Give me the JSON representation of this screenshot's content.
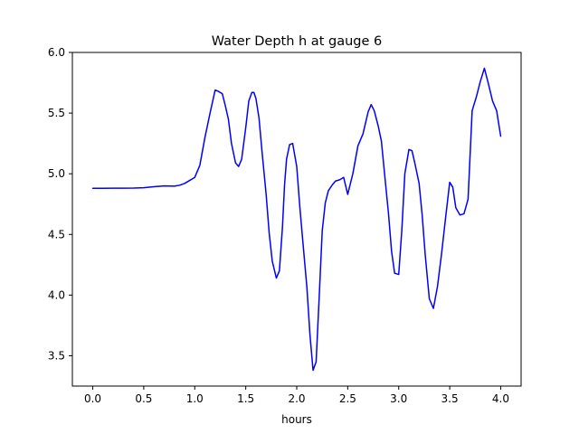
{
  "chart_data": {
    "type": "line",
    "title": "Water Depth h at gauge 6",
    "xlabel": "hours",
    "ylabel": "",
    "xlim": [
      -0.2,
      4.2
    ],
    "ylim": [
      3.25,
      6.0
    ],
    "xticks": [
      0.0,
      0.5,
      1.0,
      1.5,
      2.0,
      2.5,
      3.0,
      3.5,
      4.0
    ],
    "xtick_labels": [
      "0.0",
      "0.5",
      "1.0",
      "1.5",
      "2.0",
      "2.5",
      "3.0",
      "3.5",
      "4.0"
    ],
    "yticks": [
      3.5,
      4.0,
      4.5,
      5.0,
      5.5,
      6.0
    ],
    "ytick_labels": [
      "3.5",
      "4.0",
      "4.5",
      "5.0",
      "5.5",
      "6.0"
    ],
    "grid": false,
    "series": [
      {
        "name": "",
        "color": "#0000ff",
        "x": [
          0.0,
          0.1,
          0.2,
          0.3,
          0.4,
          0.5,
          0.6,
          0.7,
          0.8,
          0.85,
          0.9,
          0.95,
          1.0,
          1.05,
          1.1,
          1.15,
          1.2,
          1.23,
          1.27,
          1.3,
          1.33,
          1.36,
          1.4,
          1.43,
          1.46,
          1.5,
          1.53,
          1.56,
          1.58,
          1.6,
          1.63,
          1.66,
          1.7,
          1.73,
          1.76,
          1.8,
          1.83,
          1.86,
          1.88,
          1.9,
          1.93,
          1.96,
          2.0,
          2.03,
          2.06,
          2.1,
          2.13,
          2.16,
          2.19,
          2.22,
          2.25,
          2.28,
          2.31,
          2.35,
          2.38,
          2.42,
          2.46,
          2.5,
          2.55,
          2.6,
          2.65,
          2.7,
          2.73,
          2.76,
          2.8,
          2.83,
          2.86,
          2.9,
          2.93,
          2.96,
          3.0,
          3.03,
          3.06,
          3.1,
          3.13,
          3.16,
          3.2,
          3.23,
          3.26,
          3.3,
          3.34,
          3.38,
          3.42,
          3.46,
          3.5,
          3.53,
          3.56,
          3.6,
          3.64,
          3.68,
          3.72,
          3.76,
          3.8,
          3.84,
          3.88,
          3.92,
          3.96,
          4.0
        ],
        "values": [
          4.88,
          4.88,
          4.881,
          4.881,
          4.882,
          4.885,
          4.893,
          4.9,
          4.898,
          4.905,
          4.92,
          4.945,
          4.97,
          5.07,
          5.3,
          5.5,
          5.69,
          5.68,
          5.66,
          5.56,
          5.45,
          5.25,
          5.09,
          5.06,
          5.12,
          5.38,
          5.6,
          5.67,
          5.67,
          5.62,
          5.46,
          5.18,
          4.83,
          4.51,
          4.28,
          4.14,
          4.2,
          4.56,
          4.9,
          5.12,
          5.24,
          5.25,
          5.06,
          4.73,
          4.44,
          4.06,
          3.67,
          3.38,
          3.45,
          3.98,
          4.53,
          4.76,
          4.86,
          4.91,
          4.94,
          4.95,
          4.97,
          4.83,
          5.0,
          5.23,
          5.33,
          5.51,
          5.57,
          5.52,
          5.39,
          5.27,
          5.01,
          4.67,
          4.36,
          4.18,
          4.17,
          4.53,
          5.0,
          5.2,
          5.19,
          5.08,
          4.92,
          4.66,
          4.33,
          3.97,
          3.89,
          4.07,
          4.34,
          4.64,
          4.93,
          4.89,
          4.72,
          4.66,
          4.67,
          4.79,
          5.52,
          5.63,
          5.76,
          5.87,
          5.74,
          5.6,
          5.52,
          5.31
        ]
      }
    ]
  }
}
